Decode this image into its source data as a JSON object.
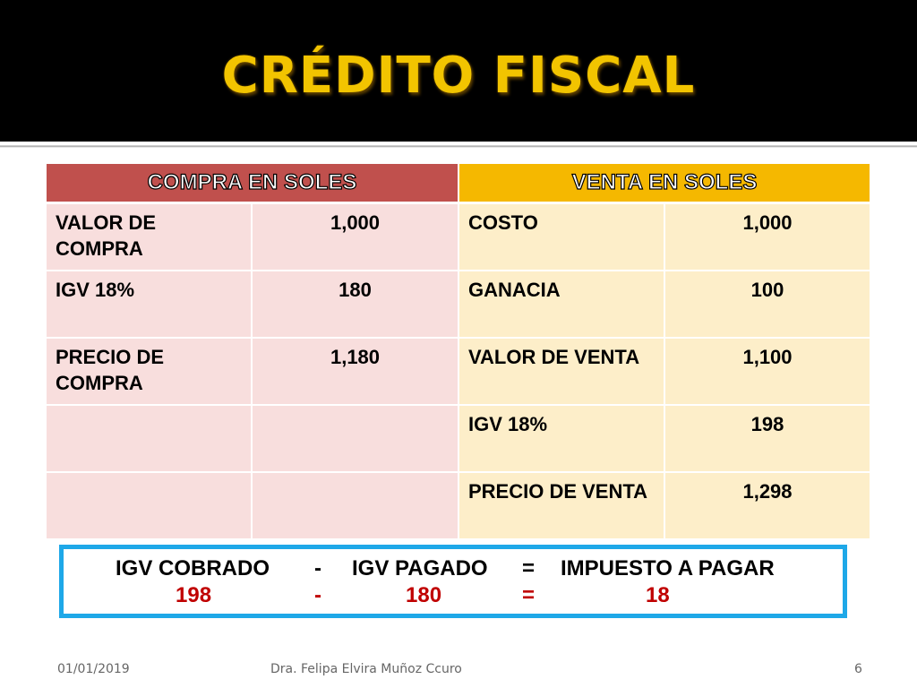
{
  "slide": {
    "title": "CRÉDITO FISCAL"
  },
  "table": {
    "header_compra": "COMPRA EN SOLES",
    "header_venta": "VENTA EN SOLES",
    "rows": [
      {
        "compra_label": "VALOR DE COMPRA",
        "compra_value": "1,000",
        "venta_label": "COSTO",
        "venta_value": "1,000"
      },
      {
        "compra_label": "IGV 18%",
        "compra_value": "180",
        "venta_label": "GANACIA",
        "venta_value": "100"
      },
      {
        "compra_label": "PRECIO DE COMPRA",
        "compra_value": "1,180",
        "venta_label": "VALOR DE VENTA",
        "venta_value": "1,100"
      },
      {
        "compra_label": "",
        "compra_value": "",
        "venta_label": "IGV 18%",
        "venta_value": "198"
      },
      {
        "compra_label": "",
        "compra_value": "",
        "venta_label": "PRECIO DE VENTA",
        "venta_value": "1,298"
      }
    ]
  },
  "summary": {
    "label_cobrado": "IGV COBRADO",
    "minus": "-",
    "label_pagado": "IGV PAGADO",
    "equals": "=",
    "label_impuesto": "IMPUESTO A PAGAR",
    "value_cobrado": "198",
    "value_pagado": "180",
    "value_impuesto": "18"
  },
  "footer": {
    "date": "01/01/2019",
    "author": "Dra. Felipa Elvira Muñoz Ccuro",
    "page": "6"
  },
  "colors": {
    "title": "#f2c400",
    "compra_header": "#c0504d",
    "venta_header": "#f5b800",
    "compra_cell": "#f8dedd",
    "venta_cell": "#fdeec9",
    "summary_border": "#1ea8e8",
    "summary_values": "#c00000"
  }
}
